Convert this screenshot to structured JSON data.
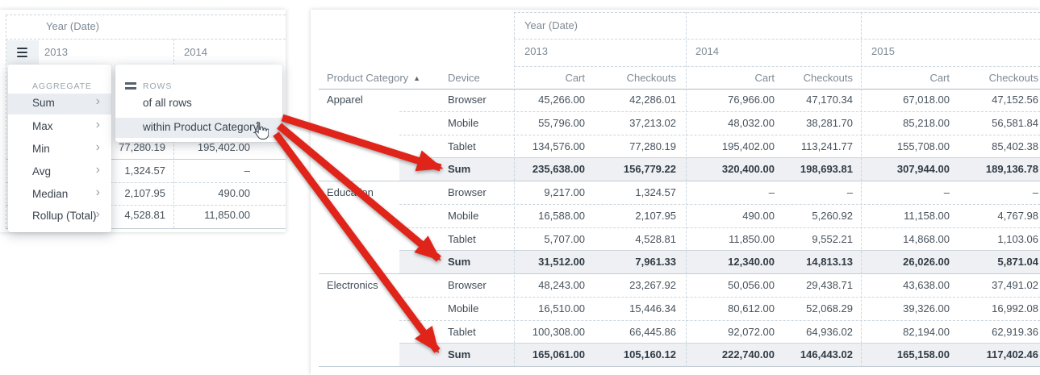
{
  "colors": {
    "arrow_red": "#e0241a",
    "sum_row_bg": "#eef0f3",
    "menu_highlight_bg": "#e9edf1",
    "dashed_border": "#ccd6de"
  },
  "icons": {
    "chevron_right": "›",
    "sort_asc": "▲",
    "column_menu": "hamburger",
    "rows_glyph": "double-bar"
  },
  "left_panel": {
    "table": {
      "spanner_label": "Year (Date)",
      "years": [
        "2013",
        "2014"
      ],
      "rows": [
        {
          "a": "77,280.19",
          "b": "195,402.00"
        },
        {
          "a": "1,324.57",
          "b": "–"
        },
        {
          "a": "2,107.95",
          "b": "490.00"
        },
        {
          "a": "4,528.81",
          "b": "11,850.00"
        }
      ]
    },
    "aggregate_menu": {
      "label": "AGGREGATE",
      "items": [
        "Sum",
        "Max",
        "Min",
        "Avg",
        "Median",
        "Rollup (Total)"
      ],
      "selected": "Sum"
    },
    "rows_submenu": {
      "label": "ROWS",
      "items": [
        "of all rows",
        "within Product Category"
      ],
      "highlighted": "within Product Category"
    }
  },
  "right_panel": {
    "spanner_label": "Year (Date)",
    "years": [
      "2013",
      "2014",
      "2015"
    ],
    "row_header_category": "Product Category",
    "row_header_device": "Device",
    "value_headers": [
      "Cart",
      "Checkouts"
    ],
    "sort_direction": "ascending",
    "groups": [
      {
        "category": "Apparel",
        "rows": [
          {
            "device": "Browser",
            "is_sum": false,
            "values": [
              "45,266.00",
              "42,286.01",
              "76,966.00",
              "47,170.34",
              "67,018.00",
              "47,152.56"
            ]
          },
          {
            "device": "Mobile",
            "is_sum": false,
            "values": [
              "55,796.00",
              "37,213.02",
              "48,032.00",
              "38,281.70",
              "85,218.00",
              "56,581.84"
            ]
          },
          {
            "device": "Tablet",
            "is_sum": false,
            "values": [
              "134,576.00",
              "77,280.19",
              "195,402.00",
              "113,241.77",
              "155,708.00",
              "85,402.38"
            ]
          },
          {
            "device": "Sum",
            "is_sum": true,
            "values": [
              "235,638.00",
              "156,779.22",
              "320,400.00",
              "198,693.81",
              "307,944.00",
              "189,136.78"
            ]
          }
        ]
      },
      {
        "category": "Education",
        "rows": [
          {
            "device": "Browser",
            "is_sum": false,
            "values": [
              "9,217.00",
              "1,324.57",
              "–",
              "–",
              "–",
              "–"
            ]
          },
          {
            "device": "Mobile",
            "is_sum": false,
            "values": [
              "16,588.00",
              "2,107.95",
              "490.00",
              "5,260.92",
              "11,158.00",
              "4,767.98"
            ]
          },
          {
            "device": "Tablet",
            "is_sum": false,
            "values": [
              "5,707.00",
              "4,528.81",
              "11,850.00",
              "9,552.21",
              "14,868.00",
              "1,103.06"
            ]
          },
          {
            "device": "Sum",
            "is_sum": true,
            "values": [
              "31,512.00",
              "7,961.33",
              "12,340.00",
              "14,813.13",
              "26,026.00",
              "5,871.04"
            ]
          }
        ]
      },
      {
        "category": "Electronics",
        "rows": [
          {
            "device": "Browser",
            "is_sum": false,
            "values": [
              "48,243.00",
              "23,267.92",
              "50,056.00",
              "29,438.71",
              "43,638.00",
              "37,491.02"
            ]
          },
          {
            "device": "Mobile",
            "is_sum": false,
            "values": [
              "16,510.00",
              "15,446.34",
              "80,612.00",
              "52,068.29",
              "39,326.00",
              "16,992.08"
            ]
          },
          {
            "device": "Tablet",
            "is_sum": false,
            "values": [
              "100,308.00",
              "66,445.86",
              "92,072.00",
              "64,936.02",
              "82,194.00",
              "62,919.36"
            ]
          },
          {
            "device": "Sum",
            "is_sum": true,
            "values": [
              "165,061.00",
              "105,160.12",
              "222,740.00",
              "146,443.02",
              "165,158.00",
              "117,402.46"
            ]
          }
        ]
      }
    ]
  }
}
